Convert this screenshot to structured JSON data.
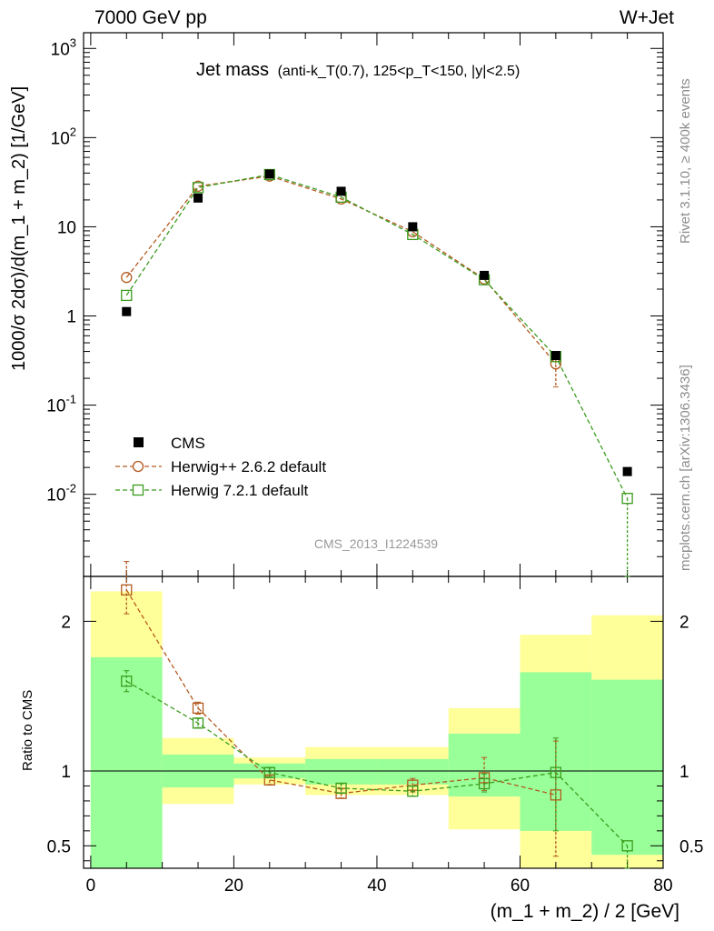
{
  "header": {
    "left": "7000 GeV pp",
    "right": "W+Jet",
    "rivet": "Rivet 3.1.10, ≥ 400k events",
    "source": "mcplots.cern.ch [arXiv:1306.3436]",
    "watermark": "CMS_2013_I1224539"
  },
  "chart_data": [
    {
      "type": "scatter",
      "title": "Jet mass",
      "subtitle": "(anti-k_T(0.7), 125<p_T<150, |y|<2.5)",
      "xlabel": "(m_1 + m_2) / 2 [GeV]",
      "ylabel": "1000/σ 2dσ)/d(m_1 + m_2) [1/GeV]",
      "xlim": [
        -1,
        80
      ],
      "ylim": [
        0.0012,
        1500
      ],
      "y_scale": "log",
      "y_ticks": [
        "10^-2",
        "10^-1",
        "1",
        "10",
        "10^2",
        "10^3"
      ],
      "legend_position": "bottom-left",
      "x": [
        5,
        15,
        25,
        35,
        45,
        55,
        65,
        75
      ],
      "series": [
        {
          "name": "CMS",
          "marker": "filled-square",
          "color": "#000000",
          "values": [
            1.12,
            21,
            39,
            25,
            10,
            2.85,
            0.36,
            0.018
          ]
        },
        {
          "name": "Herwig++ 2.6.2 default",
          "marker": "open-circle",
          "color": "#b35a1f",
          "values": [
            2.7,
            28.5,
            37,
            20.5,
            8.8,
            2.6,
            0.29,
            null
          ],
          "err_low": [
            null,
            null,
            null,
            null,
            null,
            null,
            0.16,
            null
          ],
          "err_high": [
            null,
            null,
            null,
            null,
            null,
            null,
            0.36,
            null
          ]
        },
        {
          "name": "Herwig 7.2.1 default",
          "marker": "open-square",
          "color": "#3c9c1f",
          "values": [
            1.7,
            27.5,
            38.5,
            21.5,
            8.2,
            2.55,
            0.35,
            0.009
          ],
          "err_low": [
            null,
            null,
            null,
            null,
            null,
            null,
            null,
            0.0012
          ],
          "err_high": [
            null,
            null,
            null,
            null,
            null,
            null,
            null,
            null
          ]
        }
      ]
    },
    {
      "type": "scatter",
      "ylabel": "Ratio to CMS",
      "xlabel": "(m_1 + m_2) / 2 [GeV]",
      "xlim": [
        -1,
        80
      ],
      "ylim": [
        0.35,
        2.3
      ],
      "x_ticks": [
        0,
        20,
        40,
        60,
        80
      ],
      "y_ticks": [
        0.5,
        1,
        2
      ],
      "reference_line": 1,
      "bands": {
        "edges": [
          0,
          10,
          20,
          30,
          40,
          50,
          60,
          70,
          80
        ],
        "yellow": [
          [
            0.35,
            2.2
          ],
          [
            0.78,
            1.22
          ],
          [
            0.91,
            1.09
          ],
          [
            0.84,
            1.16
          ],
          [
            0.84,
            1.16
          ],
          [
            0.61,
            1.42
          ],
          [
            0.35,
            1.91
          ],
          [
            0.35,
            2.04
          ]
        ],
        "green": [
          [
            0.35,
            1.76
          ],
          [
            0.89,
            1.11
          ],
          [
            0.95,
            1.05
          ],
          [
            0.91,
            1.08
          ],
          [
            0.91,
            1.08
          ],
          [
            0.83,
            1.25
          ],
          [
            0.6,
            1.66
          ],
          [
            0.44,
            1.61
          ]
        ]
      },
      "series": [
        {
          "name": "Herwig++ 2.6.2 default",
          "color": "#b35a1f",
          "values": [
            2.21,
            1.42,
            0.94,
            0.85,
            0.905,
            0.955,
            0.84,
            null
          ],
          "err_low": [
            2.05,
            1.38,
            0.91,
            0.82,
            0.86,
            0.87,
            0.43,
            null
          ],
          "err_high": [
            2.4,
            1.46,
            0.97,
            0.88,
            0.95,
            1.09,
            1.2,
            null
          ]
        },
        {
          "name": "Herwig 7.2.1 default",
          "color": "#3c9c1f",
          "values": [
            1.6,
            1.32,
            0.99,
            0.885,
            0.865,
            0.915,
            0.99,
            0.5
          ],
          "err_low": [
            1.53,
            1.29,
            0.96,
            0.855,
            0.83,
            0.86,
            0.6,
            0.35
          ],
          "err_high": [
            1.67,
            1.35,
            1.02,
            0.915,
            0.9,
            0.98,
            1.22,
            null
          ]
        }
      ]
    }
  ]
}
